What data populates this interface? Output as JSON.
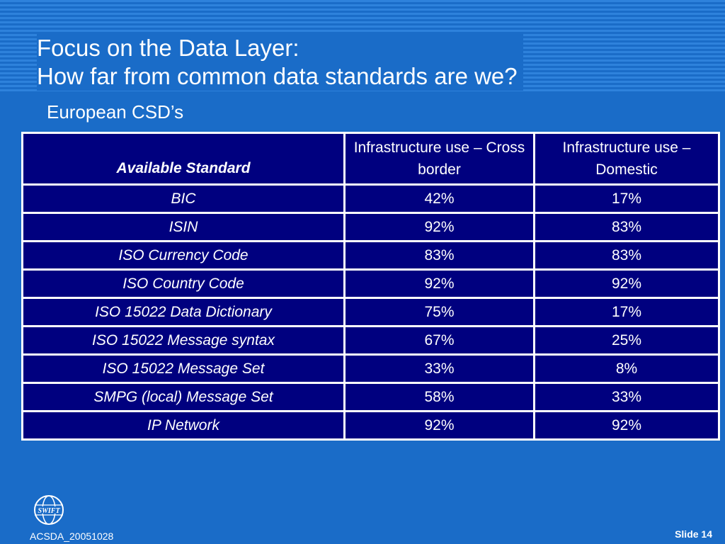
{
  "slide": {
    "title_line1": "Focus on the Data Layer:",
    "title_line2": "How far from common data standards are we?",
    "subtitle": "European CSD’s",
    "footer_left": "ACSDA_20051028",
    "footer_right": "Slide 14",
    "logo_text": "SWIFT"
  },
  "table": {
    "headers": {
      "standard": "Available Standard",
      "cross_border": "Infrastructure use – Cross border",
      "domestic": "Infrastructure use – Domestic"
    },
    "rows": [
      {
        "standard": "BIC",
        "cross_border": "42%",
        "domestic": "17%"
      },
      {
        "standard": "ISIN",
        "cross_border": "92%",
        "domestic": "83%"
      },
      {
        "standard": "ISO Currency Code",
        "cross_border": "83%",
        "domestic": "83%"
      },
      {
        "standard": "ISO Country Code",
        "cross_border": "92%",
        "domestic": "92%"
      },
      {
        "standard": "ISO 15022 Data Dictionary",
        "cross_border": "75%",
        "domestic": "17%"
      },
      {
        "standard": "ISO 15022 Message syntax",
        "cross_border": "67%",
        "domestic": "25%"
      },
      {
        "standard": "ISO 15022 Message Set",
        "cross_border": "33%",
        "domestic": "8%"
      },
      {
        "standard": "SMPG (local) Message Set",
        "cross_border": "58%",
        "domestic": "33%"
      },
      {
        "standard": "IP Network",
        "cross_border": "92%",
        "domestic": "92%"
      }
    ]
  },
  "colors": {
    "background": "#1a6cc8",
    "table_fill": "#00007f",
    "text": "#ffffff"
  }
}
